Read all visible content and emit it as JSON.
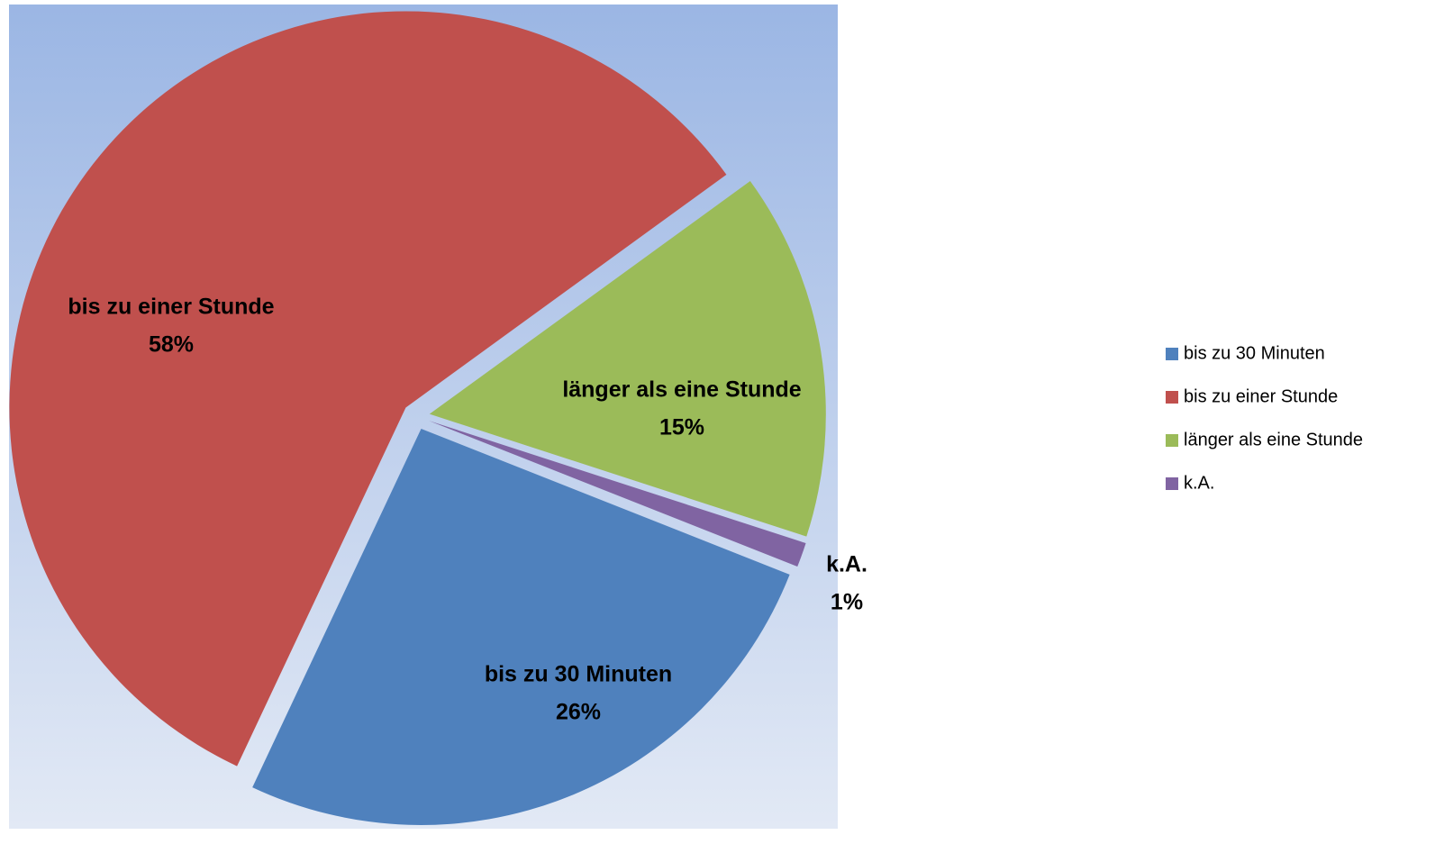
{
  "chart_data": {
    "type": "pie",
    "categories": [
      "bis zu 30 Minuten",
      "bis zu einer Stunde",
      "länger als eine Stunde",
      "k.A."
    ],
    "values": [
      26,
      58,
      15,
      1
    ],
    "value_labels": [
      "26%",
      "58%",
      "15%",
      "1%"
    ],
    "colors": [
      "#4f81bd",
      "#c0504d",
      "#9bbb59",
      "#8064a2"
    ],
    "legend": "right"
  }
}
